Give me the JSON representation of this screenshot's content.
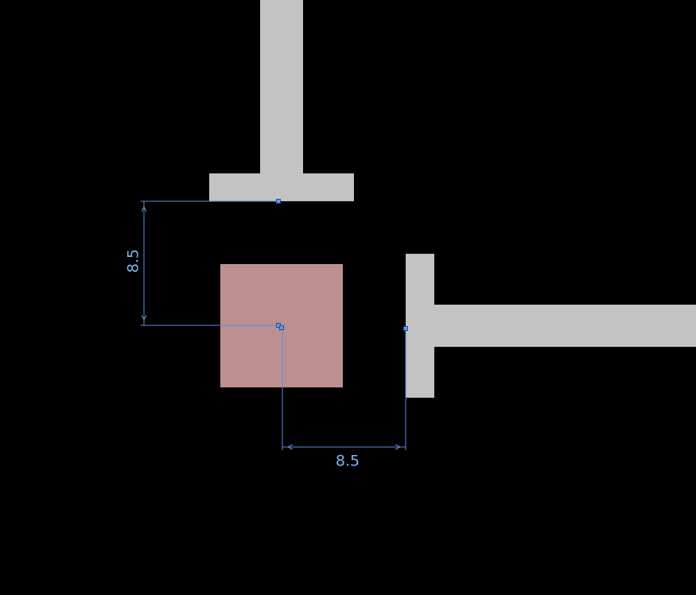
{
  "canvas": {
    "background": "#000000"
  },
  "colors": {
    "wall": "#c3c3c3",
    "column": "#bc9090",
    "dimension": "#7db3f0",
    "dimension_line": "#5b8ed6",
    "grip_fill": "#5aa0f0",
    "grip_stroke": "#1f4e9a"
  },
  "dimensions": {
    "vertical": {
      "label": "8.5",
      "value": 8.5
    },
    "horizontal": {
      "label": "8.5",
      "value": 8.5
    }
  }
}
